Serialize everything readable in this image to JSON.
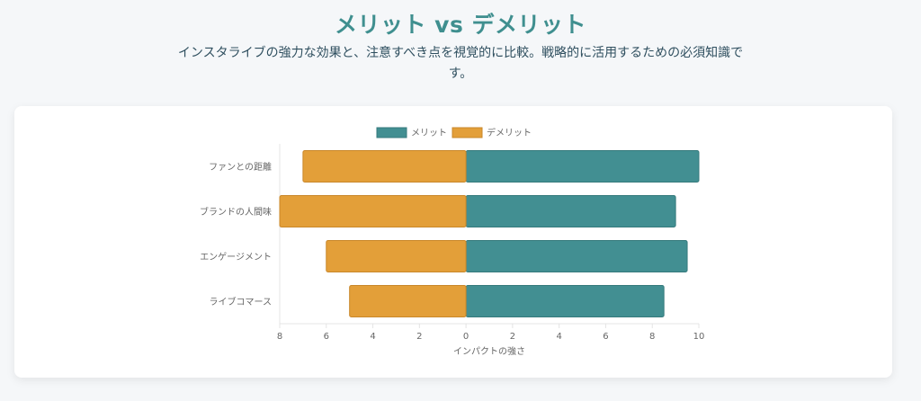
{
  "page": {
    "title": "メリット vs デメリット",
    "subtitle": "インスタライブの強力な効果と、注意すべき点を視覚的に比較。戦略的に活用するための必須知識です。"
  },
  "colors": {
    "title": "#3f8f8f",
    "merit": "#428f92",
    "demerit": "#e39f39",
    "axis_text": "#666666"
  },
  "chart_data": {
    "type": "bar",
    "orientation": "horizontal",
    "stacked": "diverging",
    "categories": [
      "ファンとの距離",
      "ブランドの人間味",
      "エンゲージメント",
      "ライブコマース"
    ],
    "series": [
      {
        "name": "メリット",
        "values": [
          10,
          9,
          9.5,
          8.5
        ]
      },
      {
        "name": "デメリット",
        "values": [
          -7,
          -8,
          -6,
          -5
        ]
      }
    ],
    "xlabel": "インパクトの強さ",
    "ylabel": "",
    "xlim": [
      -8,
      10
    ],
    "xticks": [
      -8,
      -6,
      -4,
      -2,
      0,
      2,
      4,
      6,
      8,
      10
    ],
    "xtick_labels": [
      "8",
      "6",
      "4",
      "2",
      "0",
      "2",
      "4",
      "6",
      "8",
      "10"
    ],
    "legend_position": "top",
    "grid": false
  }
}
